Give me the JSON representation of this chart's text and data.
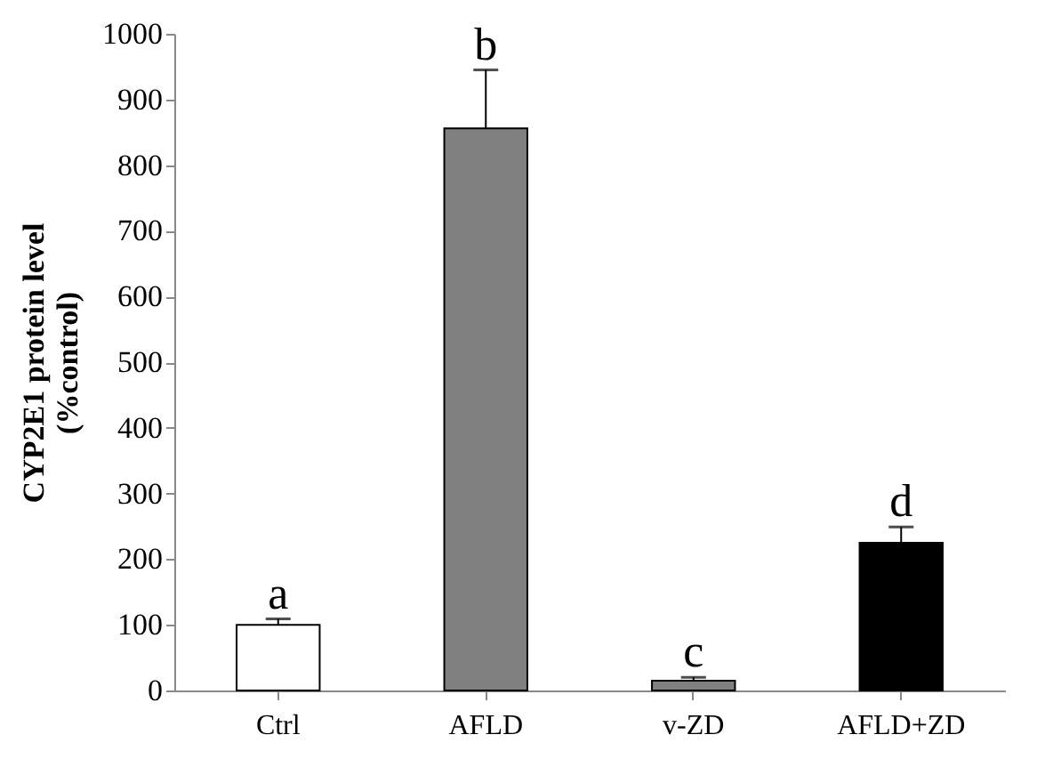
{
  "chart_data": {
    "type": "bar",
    "ylabel": "CYP2E1 protein level\n(%control)",
    "categories": [
      "Ctrl",
      "AFLD",
      "v-ZD",
      "AFLD+ZD"
    ],
    "values": [
      100,
      856,
      15,
      225
    ],
    "colors": [
      "#ffffff",
      "#808080",
      "#808080",
      "#000000"
    ],
    "errors": [
      [
        100,
        109
      ],
      [
        856,
        945
      ],
      [
        15,
        20
      ],
      [
        225,
        249
      ]
    ],
    "ylim": [
      0,
      1000
    ],
    "yticks": [
      0,
      100,
      200,
      300,
      400,
      500,
      600,
      700,
      800,
      900,
      1000
    ],
    "grid": false,
    "annotations": [
      {
        "text": "a",
        "x": "Ctrl",
        "y": 109
      },
      {
        "text": "b",
        "x": "AFLD",
        "y": 945
      },
      {
        "text": "c",
        "x": "v-ZD",
        "y": 20
      },
      {
        "text": "d",
        "x": "AFLD+ZD",
        "y": 249
      }
    ]
  }
}
